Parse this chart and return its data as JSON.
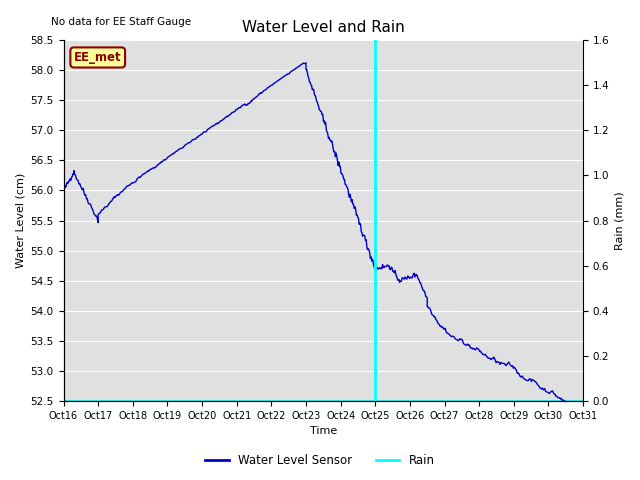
{
  "title": "Water Level and Rain",
  "top_left_text": "No data for EE Staff Gauge",
  "xlabel": "Time",
  "ylabel_left": "Water Level (cm)",
  "ylabel_right": "Rain (mm)",
  "annotation_box": "EE_met",
  "xlim": [
    0,
    15
  ],
  "ylim_left": [
    52.5,
    58.5
  ],
  "ylim_right": [
    0.0,
    1.6
  ],
  "xtick_labels": [
    "Oct 16",
    "Oct 17",
    "Oct 18",
    "Oct 19",
    "Oct 20",
    "Oct 21",
    "Oct 22",
    "Oct 23",
    "Oct 24",
    "Oct 25",
    "Oct 26",
    "Oct 27",
    "Oct 28",
    "Oct 29",
    "Oct 30",
    "Oct 31"
  ],
  "yticks_left": [
    52.5,
    53.0,
    53.5,
    54.0,
    54.5,
    55.0,
    55.5,
    56.0,
    56.5,
    57.0,
    57.5,
    58.0,
    58.5
  ],
  "yticks_right": [
    0.0,
    0.2,
    0.4,
    0.6,
    0.8,
    1.0,
    1.2,
    1.4,
    1.6
  ],
  "line_color": "#0000cc",
  "rain_color": "#00ffff",
  "background_color": "#e0e0e0",
  "rain_x": 9.0,
  "legend_water_label": "Water Level Sensor",
  "legend_rain_label": "Rain",
  "figsize": [
    6.4,
    4.8
  ],
  "dpi": 100
}
